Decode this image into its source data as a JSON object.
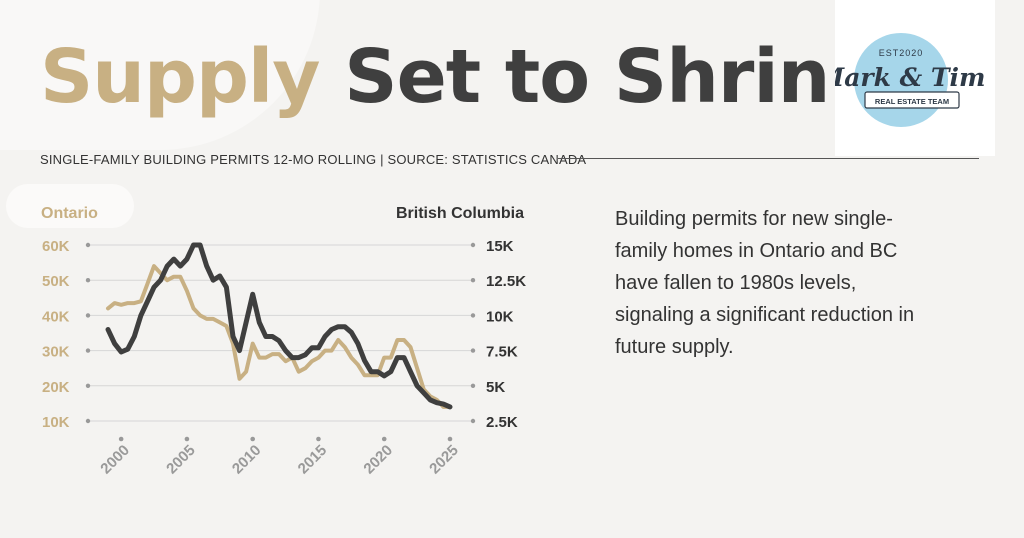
{
  "title": {
    "part1": "Supply",
    "part2": "Set to Shrink"
  },
  "subtitle": "SINGLE-FAMILY BUILDING PERMITS 12-MO ROLLING | SOURCE: STATISTICS CANADA",
  "description": "Building permits for new single-family homes in Ontario and BC have fallen to 1980s levels, signaling a significant reduction in future supply.",
  "logo": {
    "top": "EST2020",
    "name": "Mark & Tim",
    "tagline": "REAL ESTATE TEAM"
  },
  "colors": {
    "ontario": "#c8b083",
    "bc": "#3f3f3f",
    "grid": "#d6d6d6",
    "background": "#f4f3f1"
  },
  "chart_data": {
    "type": "line",
    "x": [
      1999.0,
      1999.5,
      2000.0,
      2000.5,
      2001.0,
      2001.5,
      2002.0,
      2002.5,
      2003.0,
      2003.5,
      2004.0,
      2004.5,
      2005.0,
      2005.5,
      2006.0,
      2006.5,
      2007.0,
      2007.5,
      2008.0,
      2008.5,
      2009.0,
      2009.5,
      2010.0,
      2010.5,
      2011.0,
      2011.5,
      2012.0,
      2012.5,
      2013.0,
      2013.5,
      2014.0,
      2014.5,
      2015.0,
      2015.5,
      2016.0,
      2016.5,
      2017.0,
      2017.5,
      2018.0,
      2018.5,
      2019.0,
      2019.5,
      2020.0,
      2020.5,
      2021.0,
      2021.5,
      2022.0,
      2022.5,
      2023.0,
      2023.5,
      2024.0,
      2024.5,
      2025.0
    ],
    "xticks": [
      "2000",
      "2005",
      "2010",
      "2015",
      "2020",
      "2025"
    ],
    "xlim": [
      1998.2,
      2025.3
    ],
    "series": [
      {
        "name": "Ontario",
        "axis": "left",
        "values": [
          42,
          43.5,
          43,
          43.5,
          43.5,
          44,
          49,
          54,
          52,
          50,
          51,
          51,
          47,
          42,
          40,
          39,
          39,
          38,
          37,
          32,
          22,
          24,
          32,
          28,
          28,
          29,
          29,
          27,
          28,
          24,
          25,
          27,
          28,
          30,
          30,
          33,
          31,
          28,
          26,
          23,
          23,
          23,
          28,
          28,
          33,
          33,
          31,
          25,
          19,
          17,
          16,
          14,
          14
        ]
      },
      {
        "name": "British Columbia",
        "axis": "right",
        "values": [
          9,
          8,
          7.4,
          7.6,
          8.5,
          10,
          11,
          12,
          12.5,
          13.5,
          14,
          13.5,
          14,
          15,
          15,
          13.5,
          12.5,
          12.8,
          12,
          8.5,
          7.5,
          9.5,
          11.5,
          9.5,
          8.5,
          8.5,
          8.2,
          7.5,
          7,
          7,
          7.2,
          7.7,
          7.7,
          8.5,
          9,
          9.2,
          9.2,
          8.8,
          8,
          6.8,
          6,
          6,
          5.7,
          6,
          7,
          7,
          6,
          5,
          4.5,
          4,
          3.8,
          3.7,
          3.5
        ]
      }
    ],
    "yleft": {
      "label": "Ontario",
      "ylim": [
        10,
        60
      ],
      "ticks": [
        10,
        20,
        30,
        40,
        50,
        60
      ],
      "tick_labels": [
        "10K",
        "20K",
        "30K",
        "40K",
        "50K",
        "60K"
      ]
    },
    "yright": {
      "label": "British Columbia",
      "ylim": [
        2.5,
        15
      ],
      "ticks": [
        2.5,
        5,
        7.5,
        10,
        12.5,
        15
      ],
      "tick_labels": [
        "2.5K",
        "5K",
        "7.5K",
        "10K",
        "12.5K",
        "15K"
      ]
    },
    "grid": true
  }
}
